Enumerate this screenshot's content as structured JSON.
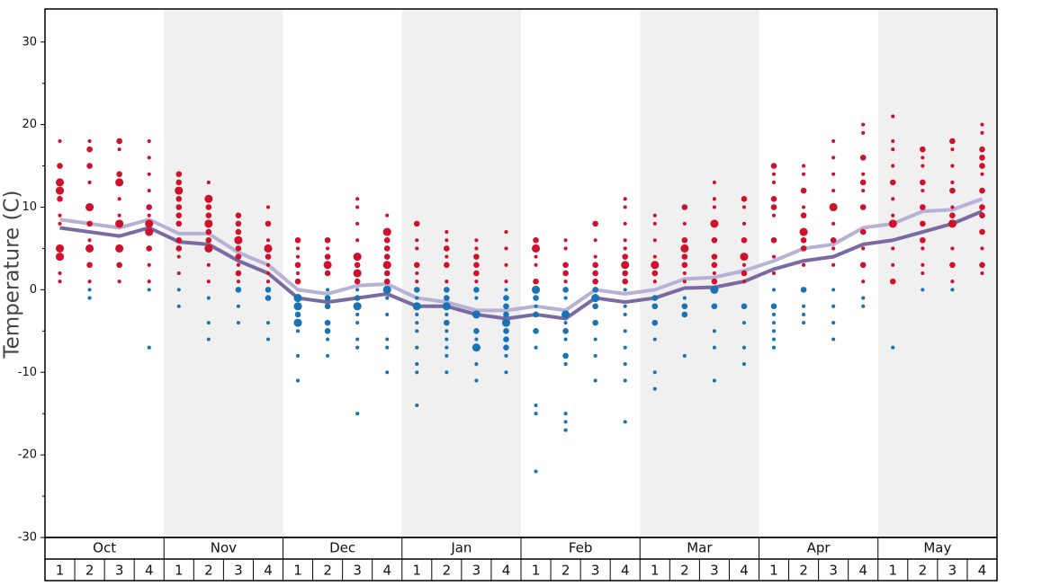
{
  "chart_data": {
    "type": "scatter",
    "y_label": "Temperature (C)",
    "ylim": [
      -30,
      34
    ],
    "yticks": [
      -30,
      -20,
      -10,
      0,
      10,
      20,
      30
    ],
    "yminorticks": [
      -25,
      -15,
      -5,
      5,
      15,
      25
    ],
    "months": [
      "Oct",
      "Nov",
      "Dec",
      "Jan",
      "Feb",
      "Mar",
      "Apr",
      "May"
    ],
    "x_labels": [
      "1",
      "2",
      "3",
      "4",
      "1",
      "2",
      "3",
      "4",
      "1",
      "2",
      "3",
      "4",
      "1",
      "2",
      "3",
      "4",
      "1",
      "2",
      "3",
      "4",
      "1",
      "2",
      "3",
      "4",
      "1",
      "2",
      "3",
      "4",
      "1",
      "2",
      "3",
      "4"
    ],
    "shade_alternate": true,
    "color_above": "#d0112b",
    "color_below": "#1a73b5",
    "dots": [
      {
        "temps": [
          18,
          15,
          13,
          12,
          11,
          9,
          8,
          5,
          4,
          2,
          1
        ],
        "sizes": [
          1,
          2,
          3,
          3,
          2,
          1,
          1,
          3,
          3,
          1,
          1
        ]
      },
      {
        "temps": [
          18,
          17,
          15,
          13,
          10,
          8,
          6,
          5,
          3,
          1,
          0,
          -1
        ],
        "sizes": [
          1,
          2,
          2,
          1,
          3,
          2,
          1,
          3,
          2,
          1,
          1,
          1
        ]
      },
      {
        "temps": [
          18,
          17,
          14,
          13,
          11,
          9,
          8,
          5,
          3,
          1
        ],
        "sizes": [
          2,
          1,
          2,
          3,
          1,
          1,
          3,
          3,
          2,
          1
        ]
      },
      {
        "temps": [
          18,
          16,
          14,
          12,
          10,
          9,
          8,
          7,
          5,
          3,
          1,
          0,
          -7
        ],
        "sizes": [
          1,
          1,
          1,
          1,
          2,
          1,
          3,
          3,
          2,
          1,
          1,
          1,
          1
        ]
      },
      {
        "temps": [
          14,
          13,
          12,
          11,
          10,
          9,
          8,
          6,
          5,
          4,
          2,
          0,
          -2
        ],
        "sizes": [
          2,
          2,
          3,
          2,
          2,
          2,
          2,
          2,
          2,
          1,
          1,
          1,
          1
        ]
      },
      {
        "temps": [
          13,
          11,
          10,
          9,
          8,
          7,
          6,
          5,
          3,
          1,
          -1,
          -4,
          -6
        ],
        "sizes": [
          1,
          3,
          2,
          2,
          3,
          2,
          2,
          3,
          1,
          1,
          1,
          1,
          1
        ]
      },
      {
        "temps": [
          9,
          8,
          7,
          6,
          5,
          4,
          3,
          2,
          1,
          0,
          -2,
          -4
        ],
        "sizes": [
          2,
          2,
          2,
          3,
          2,
          2,
          1,
          2,
          1,
          2,
          1,
          1
        ]
      },
      {
        "temps": [
          10,
          8,
          6,
          5,
          4,
          3,
          2,
          1,
          0,
          -1,
          -4,
          -6
        ],
        "sizes": [
          1,
          2,
          1,
          3,
          2,
          1,
          1,
          1,
          2,
          2,
          1,
          1
        ]
      },
      {
        "temps": [
          6,
          5,
          4,
          3,
          2,
          1,
          -1,
          -2,
          -3,
          -4,
          -5,
          -8,
          -11
        ],
        "sizes": [
          2,
          1,
          1,
          2,
          1,
          2,
          3,
          3,
          2,
          3,
          1,
          1,
          1
        ]
      },
      {
        "temps": [
          6,
          5,
          4,
          3,
          2,
          0,
          -1,
          -2,
          -4,
          -5,
          -6,
          -8
        ],
        "sizes": [
          2,
          1,
          2,
          3,
          2,
          1,
          2,
          2,
          2,
          2,
          1,
          1
        ]
      },
      {
        "temps": [
          11,
          10,
          8,
          6,
          4,
          3,
          2,
          1,
          0,
          -1,
          -2,
          -3,
          -4,
          -6,
          -7,
          -15
        ],
        "sizes": [
          1,
          1,
          1,
          1,
          3,
          2,
          3,
          2,
          1,
          2,
          3,
          1,
          1,
          1,
          1,
          1
        ]
      },
      {
        "temps": [
          9,
          7,
          6,
          5,
          4,
          3,
          2,
          1,
          0,
          -1,
          -3,
          -6,
          -7,
          -10
        ],
        "sizes": [
          1,
          3,
          2,
          2,
          2,
          3,
          2,
          2,
          3,
          1,
          1,
          1,
          1,
          1
        ]
      },
      {
        "temps": [
          8,
          6,
          5,
          3,
          2,
          1,
          0,
          -1,
          -2,
          -3,
          -4,
          -5,
          -7,
          -9,
          -10,
          -14
        ],
        "sizes": [
          2,
          1,
          1,
          2,
          1,
          1,
          2,
          1,
          3,
          1,
          1,
          1,
          1,
          1,
          1,
          1
        ]
      },
      {
        "temps": [
          7,
          6,
          5,
          4,
          3,
          1,
          0,
          -1,
          -2,
          -3,
          -4,
          -5,
          -6,
          -7,
          -8,
          -10
        ],
        "sizes": [
          1,
          1,
          2,
          1,
          2,
          1,
          2,
          2,
          3,
          1,
          2,
          1,
          1,
          1,
          1,
          1
        ]
      },
      {
        "temps": [
          6,
          5,
          4,
          3,
          2,
          1,
          0,
          -1,
          -3,
          -5,
          -6,
          -7,
          -9,
          -11
        ],
        "sizes": [
          1,
          1,
          2,
          2,
          2,
          1,
          2,
          1,
          3,
          2,
          1,
          3,
          1,
          1
        ]
      },
      {
        "temps": [
          7,
          5,
          3,
          1,
          0,
          -1,
          -2,
          -3,
          -4,
          -5,
          -6,
          -7,
          -8,
          -10
        ],
        "sizes": [
          1,
          1,
          1,
          1,
          1,
          2,
          2,
          2,
          3,
          2,
          2,
          2,
          1,
          1
        ]
      },
      {
        "temps": [
          6,
          5,
          4,
          3,
          1,
          0,
          -1,
          -2,
          -3,
          -5,
          -7,
          -14,
          -15,
          -22
        ],
        "sizes": [
          2,
          3,
          1,
          1,
          2,
          3,
          2,
          1,
          2,
          2,
          1,
          1,
          1,
          1
        ]
      },
      {
        "temps": [
          6,
          5,
          3,
          2,
          1,
          0,
          -1,
          -3,
          -4,
          -5,
          -6,
          -8,
          -9,
          -15,
          -16,
          -17
        ],
        "sizes": [
          1,
          1,
          2,
          2,
          1,
          2,
          1,
          3,
          1,
          2,
          1,
          2,
          1,
          1,
          1,
          1
        ]
      },
      {
        "temps": [
          8,
          6,
          4,
          3,
          2,
          1,
          0,
          -1,
          -2,
          -4,
          -6,
          -8,
          -11
        ],
        "sizes": [
          2,
          1,
          1,
          2,
          2,
          2,
          2,
          3,
          2,
          2,
          1,
          1,
          1
        ]
      },
      {
        "temps": [
          11,
          10,
          8,
          6,
          5,
          4,
          3,
          2,
          1,
          0,
          -2,
          -3,
          -5,
          -7,
          -9,
          -11,
          -16
        ],
        "sizes": [
          1,
          1,
          1,
          1,
          1,
          2,
          3,
          2,
          2,
          1,
          1,
          1,
          1,
          1,
          1,
          1,
          1
        ]
      },
      {
        "temps": [
          9,
          8,
          6,
          4,
          3,
          2,
          1,
          -1,
          -2,
          -4,
          -6,
          -10,
          -12
        ],
        "sizes": [
          1,
          1,
          1,
          1,
          3,
          2,
          1,
          2,
          2,
          2,
          1,
          1,
          1
        ]
      },
      {
        "temps": [
          10,
          8,
          6,
          5,
          4,
          3,
          2,
          1,
          -1,
          -2,
          -3,
          -8
        ],
        "sizes": [
          2,
          1,
          2,
          3,
          2,
          2,
          1,
          1,
          1,
          2,
          2,
          1
        ]
      },
      {
        "temps": [
          13,
          11,
          10,
          8,
          6,
          4,
          3,
          2,
          1,
          0,
          -2,
          -5,
          -7,
          -11
        ],
        "sizes": [
          1,
          1,
          1,
          3,
          2,
          2,
          2,
          1,
          2,
          3,
          2,
          1,
          1,
          1
        ]
      },
      {
        "temps": [
          11,
          10,
          8,
          6,
          4,
          3,
          2,
          1,
          -2,
          -4,
          -7,
          -9
        ],
        "sizes": [
          2,
          1,
          1,
          2,
          3,
          1,
          2,
          1,
          2,
          1,
          1,
          1
        ]
      },
      {
        "temps": [
          15,
          14,
          13,
          11,
          10,
          9,
          6,
          4,
          2,
          0,
          -2,
          -3,
          -4,
          -5,
          -6,
          -7
        ],
        "sizes": [
          2,
          1,
          1,
          2,
          2,
          1,
          2,
          1,
          1,
          1,
          2,
          1,
          1,
          1,
          1,
          1
        ]
      },
      {
        "temps": [
          15,
          14,
          12,
          10,
          9,
          7,
          6,
          5,
          3,
          0,
          -2,
          -3,
          -4
        ],
        "sizes": [
          1,
          1,
          2,
          1,
          2,
          3,
          2,
          2,
          1,
          2,
          1,
          1,
          1
        ]
      },
      {
        "temps": [
          18,
          16,
          14,
          12,
          10,
          8,
          6,
          5,
          3,
          0,
          -2,
          -4,
          -6
        ],
        "sizes": [
          1,
          1,
          1,
          1,
          3,
          1,
          2,
          1,
          1,
          1,
          1,
          1,
          1
        ]
      },
      {
        "temps": [
          20,
          19,
          16,
          14,
          13,
          12,
          10,
          7,
          5,
          3,
          1,
          -1,
          -2
        ],
        "sizes": [
          1,
          1,
          2,
          1,
          2,
          1,
          2,
          2,
          1,
          2,
          1,
          1,
          1
        ]
      },
      {
        "temps": [
          21,
          18,
          17,
          15,
          13,
          11,
          9,
          8,
          5,
          3,
          1,
          -7
        ],
        "sizes": [
          1,
          1,
          1,
          1,
          2,
          1,
          1,
          3,
          1,
          1,
          2,
          1
        ]
      },
      {
        "temps": [
          17,
          16,
          15,
          13,
          12,
          10,
          8,
          6,
          5,
          3,
          2,
          0
        ],
        "sizes": [
          2,
          1,
          1,
          2,
          1,
          2,
          2,
          2,
          1,
          1,
          1,
          1
        ]
      },
      {
        "temps": [
          18,
          17,
          15,
          13,
          12,
          10,
          9,
          8,
          5,
          3,
          1,
          0
        ],
        "sizes": [
          2,
          1,
          1,
          1,
          2,
          1,
          2,
          3,
          1,
          2,
          1,
          1
        ]
      },
      {
        "temps": [
          20,
          19,
          17,
          16,
          15,
          14,
          12,
          10,
          9,
          7,
          5,
          3,
          2
        ],
        "sizes": [
          1,
          1,
          2,
          2,
          2,
          1,
          2,
          2,
          2,
          2,
          1,
          2,
          1
        ]
      }
    ],
    "lines": [
      {
        "color": "#b7b1d6",
        "values": [
          8.5,
          8,
          7.5,
          8.5,
          6.8,
          6.8,
          4.5,
          3,
          0,
          -0.5,
          0.5,
          0.7,
          -1,
          -1.5,
          -2.5,
          -2.5,
          -2,
          -2.5,
          0,
          -0.5,
          0,
          1.3,
          1.5,
          2.3,
          3.5,
          5,
          5.5,
          7.5,
          8,
          9.5,
          9.7,
          11
        ]
      },
      {
        "color": "#7a6aa3",
        "values": [
          7.5,
          7,
          6.5,
          7.5,
          5.8,
          5.5,
          3.5,
          2,
          -1,
          -1.5,
          -1,
          -0.5,
          -2,
          -2,
          -3,
          -3.5,
          -3,
          -3.5,
          -1,
          -1.5,
          -1,
          0.2,
          0.3,
          1,
          2.5,
          3.5,
          4,
          5.5,
          6,
          7,
          8,
          9.5
        ]
      }
    ]
  }
}
